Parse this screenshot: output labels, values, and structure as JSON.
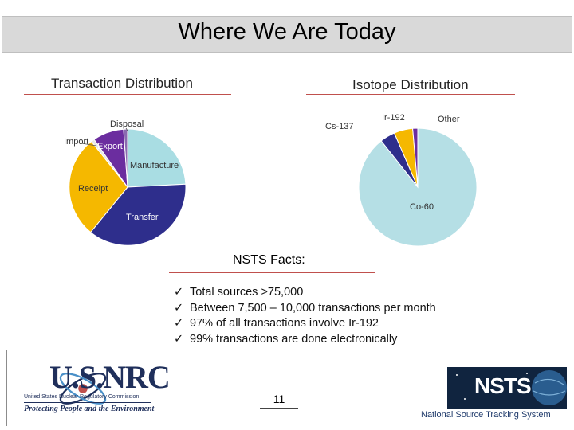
{
  "slide": {
    "title": "Where We Are Today",
    "page_number": "11"
  },
  "transaction": {
    "title": "Transaction Distribution",
    "slices": [
      {
        "label": "Disposal",
        "color": "#8a6ab0"
      },
      {
        "label": "Export",
        "color": "#6b2d9f"
      },
      {
        "label": "Manufacture",
        "color": "#a9dde3"
      },
      {
        "label": "Transfer",
        "color": "#2e2e8c"
      },
      {
        "label": "Receipt",
        "color": "#f5b800"
      },
      {
        "label": "Import",
        "color": "#e8e8e8"
      }
    ]
  },
  "isotope": {
    "title": "Isotope Distribution",
    "slices": [
      {
        "label": "Co-60",
        "color": "#b5dfe5"
      },
      {
        "label": "Cs-137",
        "color": "#2e2e8c"
      },
      {
        "label": "Ir-192",
        "color": "#f5b800"
      },
      {
        "label": "Other",
        "color": "#6b2d9f"
      }
    ]
  },
  "facts": {
    "title": "NSTS Facts:",
    "check": "✓",
    "items": [
      "Total sources >75,000",
      "Between 7,500 – 10,000 transactions per month",
      "97% of all transactions involve Ir-192",
      "99% transactions are done electronically"
    ]
  },
  "footer": {
    "nrc_name": "U.S.NRC",
    "nrc_subtitle": "United States Nuclear Regulatory Commission",
    "nrc_tagline": "Protecting People and the Environment",
    "nsts_logo": "NSTS",
    "nsts_caption": "National Source Tracking System"
  }
}
